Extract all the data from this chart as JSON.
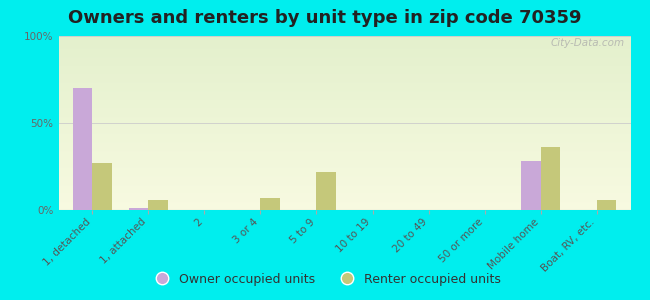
{
  "title": "Owners and renters by unit type in zip code 70359",
  "categories": [
    "1, detached",
    "1, attached",
    "2",
    "3 or 4",
    "5 to 9",
    "10 to 19",
    "20 to 49",
    "50 or more",
    "Mobile home",
    "Boat, RV, etc."
  ],
  "owner_values": [
    70,
    1,
    0,
    0,
    0,
    0,
    0,
    0,
    28,
    0
  ],
  "renter_values": [
    27,
    6,
    0,
    7,
    22,
    0,
    0,
    0,
    36,
    6
  ],
  "owner_color": "#c9a8d8",
  "renter_color": "#c5c87a",
  "outer_bg": "#00eeee",
  "ylim": [
    0,
    100
  ],
  "yticks": [
    0,
    50,
    100
  ],
  "ytick_labels": [
    "0%",
    "50%",
    "100%"
  ],
  "bar_width": 0.35,
  "title_fontsize": 13,
  "tick_fontsize": 7.5,
  "legend_fontsize": 9,
  "watermark": "City-Data.com"
}
